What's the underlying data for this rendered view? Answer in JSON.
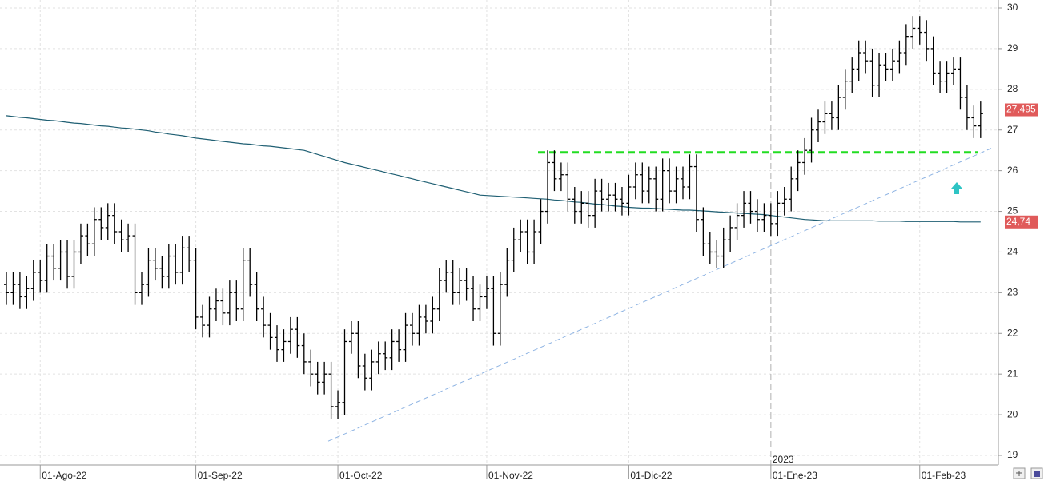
{
  "chart_data": {
    "type": "ohlc",
    "categories": [
      null,
      null,
      null,
      null,
      null,
      "01-Ago-22",
      null,
      null,
      null,
      null,
      null,
      null,
      null,
      null,
      null,
      null,
      null,
      null,
      null,
      null,
      null,
      null,
      null,
      null,
      null,
      null,
      null,
      null,
      "01-Sep-22",
      null,
      null,
      null,
      null,
      null,
      null,
      null,
      null,
      null,
      null,
      null,
      null,
      null,
      null,
      null,
      null,
      null,
      null,
      null,
      null,
      "01-Oct-22",
      null,
      null,
      null,
      null,
      null,
      null,
      null,
      null,
      null,
      null,
      null,
      null,
      null,
      null,
      null,
      null,
      null,
      null,
      null,
      null,
      null,
      "01-Nov-22",
      null,
      null,
      null,
      null,
      null,
      null,
      null,
      null,
      null,
      null,
      null,
      null,
      null,
      null,
      null,
      null,
      null,
      null,
      null,
      null,
      "01-Dic-22",
      null,
      null,
      null,
      null,
      null,
      null,
      null,
      null,
      null,
      null,
      null,
      null,
      null,
      null,
      null,
      null,
      null,
      null,
      null,
      null,
      "01-Ene-23",
      null,
      null,
      null,
      null,
      null,
      null,
      null,
      null,
      null,
      null,
      null,
      null,
      null,
      null,
      null,
      null,
      null,
      null,
      null,
      null,
      null,
      "01-Feb-23",
      null,
      null,
      null,
      null,
      null,
      null,
      null,
      null,
      null
    ],
    "ohlc": {
      "color": "#000000",
      "open": [
        23.2,
        23.0,
        23.2,
        22.9,
        23.1,
        23.5,
        23.3,
        23.9,
        23.6,
        24.0,
        23.4,
        24.0,
        24.4,
        24.2,
        24.8,
        24.6,
        24.9,
        24.5,
        24.3,
        24.4,
        23.0,
        23.2,
        23.8,
        23.6,
        23.4,
        23.9,
        23.5,
        24.1,
        23.8,
        22.4,
        22.2,
        22.6,
        22.8,
        22.5,
        23.0,
        22.6,
        23.8,
        23.2,
        22.6,
        22.2,
        21.9,
        21.6,
        21.8,
        22.1,
        21.7,
        21.3,
        21.0,
        20.8,
        21.0,
        20.2,
        20.3,
        21.8,
        22.0,
        21.2,
        20.9,
        21.3,
        21.5,
        21.4,
        21.8,
        21.6,
        22.2,
        22.0,
        22.4,
        22.3,
        22.6,
        23.3,
        23.5,
        23.0,
        23.3,
        23.1,
        22.6,
        22.9,
        23.1,
        22.0,
        23.2,
        23.8,
        24.3,
        24.5,
        24.0,
        24.5,
        25.0,
        26.2,
        25.8,
        25.9,
        25.3,
        25.0,
        25.2,
        24.9,
        25.5,
        25.3,
        25.4,
        25.3,
        25.2,
        25.6,
        25.9,
        25.5,
        25.8,
        25.3,
        26.0,
        25.5,
        25.8,
        25.6,
        26.1,
        24.8,
        24.2,
        24.0,
        23.9,
        24.3,
        24.6,
        24.9,
        25.2,
        25.0,
        24.8,
        24.9,
        24.7,
        25.2,
        25.3,
        25.8,
        26.2,
        26.5,
        27.0,
        27.2,
        27.4,
        27.3,
        27.8,
        28.2,
        28.5,
        28.9,
        28.7,
        28.1,
        28.6,
        28.5,
        28.7,
        28.9,
        29.3,
        29.5,
        29.4,
        29.0,
        28.4,
        28.2,
        28.4,
        28.5,
        27.8,
        27.3,
        27.1
      ],
      "high": [
        23.5,
        23.5,
        23.5,
        23.4,
        23.8,
        23.8,
        24.2,
        24.2,
        24.3,
        24.3,
        24.3,
        24.7,
        24.7,
        25.1,
        25.1,
        25.2,
        25.2,
        24.8,
        24.7,
        24.7,
        23.5,
        24.1,
        24.1,
        23.9,
        24.2,
        24.2,
        24.4,
        24.4,
        24.1,
        22.7,
        22.9,
        23.1,
        23.1,
        23.3,
        23.3,
        24.1,
        24.1,
        23.5,
        22.9,
        22.5,
        22.2,
        22.1,
        22.4,
        22.4,
        22.0,
        21.6,
        21.3,
        21.3,
        21.3,
        20.6,
        22.1,
        22.3,
        22.3,
        21.5,
        21.6,
        21.8,
        21.8,
        22.1,
        22.1,
        22.5,
        22.5,
        22.7,
        22.7,
        22.9,
        23.6,
        23.8,
        23.8,
        23.6,
        23.6,
        23.4,
        23.2,
        23.4,
        23.4,
        23.5,
        24.1,
        24.6,
        24.8,
        24.8,
        24.8,
        25.3,
        26.5,
        26.5,
        26.2,
        26.2,
        25.6,
        25.5,
        25.5,
        25.8,
        25.8,
        25.7,
        25.7,
        25.6,
        25.9,
        26.2,
        26.2,
        26.1,
        26.1,
        26.3,
        26.3,
        26.1,
        26.1,
        26.4,
        26.4,
        25.1,
        24.5,
        24.3,
        24.6,
        24.9,
        25.2,
        25.5,
        25.5,
        25.3,
        25.2,
        25.2,
        25.5,
        25.6,
        26.1,
        26.5,
        26.8,
        27.3,
        27.5,
        27.7,
        27.7,
        28.1,
        28.5,
        28.8,
        29.2,
        29.2,
        29.0,
        28.9,
        28.9,
        29.0,
        29.2,
        29.6,
        29.8,
        29.8,
        29.7,
        29.3,
        28.7,
        28.7,
        28.8,
        28.8,
        28.1,
        27.6,
        27.7
      ],
      "low": [
        22.7,
        22.7,
        22.6,
        22.6,
        22.8,
        23.0,
        23.0,
        23.3,
        23.3,
        23.1,
        23.1,
        23.7,
        23.9,
        23.9,
        24.3,
        24.3,
        24.2,
        24.0,
        24.0,
        22.7,
        22.7,
        22.9,
        23.3,
        23.1,
        23.1,
        23.2,
        23.2,
        23.5,
        22.1,
        21.9,
        21.9,
        22.3,
        22.2,
        22.2,
        22.3,
        22.3,
        22.9,
        22.3,
        21.9,
        21.6,
        21.3,
        21.3,
        21.5,
        21.4,
        21.0,
        20.7,
        20.5,
        20.5,
        19.9,
        19.9,
        20.0,
        21.5,
        20.9,
        20.6,
        20.6,
        21.0,
        21.1,
        21.1,
        21.3,
        21.3,
        21.7,
        21.7,
        22.0,
        22.0,
        22.3,
        23.0,
        22.7,
        22.7,
        22.8,
        22.3,
        22.3,
        22.6,
        21.7,
        21.7,
        22.9,
        23.5,
        24.0,
        23.7,
        23.7,
        24.2,
        24.7,
        25.5,
        25.5,
        25.0,
        24.7,
        24.7,
        24.6,
        24.6,
        25.0,
        25.0,
        25.0,
        24.9,
        24.9,
        25.3,
        25.2,
        25.2,
        25.0,
        25.0,
        25.2,
        25.2,
        25.3,
        25.3,
        24.5,
        23.9,
        23.7,
        23.6,
        23.6,
        24.0,
        24.3,
        24.6,
        24.7,
        24.5,
        24.5,
        24.4,
        24.4,
        24.9,
        25.0,
        25.5,
        25.9,
        26.2,
        26.7,
        26.9,
        27.0,
        27.0,
        27.5,
        27.9,
        28.2,
        28.4,
        27.8,
        27.8,
        28.2,
        28.2,
        28.4,
        28.6,
        29.0,
        29.1,
        28.7,
        28.1,
        27.9,
        27.9,
        28.1,
        27.5,
        27.0,
        26.8,
        26.8
      ],
      "close": [
        23.0,
        23.2,
        22.9,
        23.1,
        23.5,
        23.3,
        23.9,
        23.6,
        24.0,
        23.4,
        24.0,
        24.4,
        24.2,
        24.8,
        24.6,
        24.9,
        24.5,
        24.3,
        24.4,
        23.0,
        23.2,
        23.8,
        23.6,
        23.4,
        23.9,
        23.5,
        24.1,
        23.8,
        22.4,
        22.2,
        22.6,
        22.8,
        22.5,
        23.0,
        22.6,
        23.8,
        23.2,
        22.6,
        22.2,
        21.9,
        21.6,
        21.8,
        22.1,
        21.7,
        21.3,
        21.0,
        20.8,
        21.0,
        20.2,
        20.3,
        21.8,
        22.0,
        21.2,
        20.9,
        21.3,
        21.5,
        21.4,
        21.8,
        21.6,
        22.2,
        22.0,
        22.4,
        22.3,
        22.6,
        23.3,
        23.5,
        23.0,
        23.3,
        23.1,
        22.6,
        22.9,
        23.1,
        22.0,
        23.2,
        23.8,
        24.3,
        24.5,
        24.0,
        24.5,
        25.0,
        26.2,
        25.8,
        25.9,
        25.3,
        25.0,
        25.2,
        24.9,
        25.5,
        25.3,
        25.4,
        25.3,
        25.2,
        25.6,
        25.9,
        25.5,
        25.8,
        25.3,
        26.0,
        25.5,
        25.8,
        25.6,
        26.1,
        24.8,
        24.2,
        24.0,
        23.9,
        24.3,
        24.6,
        24.9,
        25.2,
        25.0,
        24.8,
        24.9,
        24.7,
        25.2,
        25.3,
        25.8,
        26.2,
        26.5,
        27.0,
        27.2,
        27.4,
        27.3,
        27.8,
        28.2,
        28.5,
        28.9,
        28.7,
        28.1,
        28.6,
        28.5,
        28.7,
        28.9,
        29.3,
        29.5,
        29.4,
        29.0,
        28.4,
        28.2,
        28.4,
        28.5,
        27.8,
        27.3,
        27.1,
        27.4
      ]
    },
    "moving_average": {
      "color": "#1f5f73",
      "values": [
        27.35,
        27.33,
        27.31,
        27.3,
        27.28,
        27.26,
        27.24,
        27.23,
        27.21,
        27.19,
        27.17,
        27.16,
        27.14,
        27.12,
        27.1,
        27.09,
        27.07,
        27.05,
        27.04,
        27.02,
        27.0,
        26.98,
        26.95,
        26.93,
        26.9,
        26.88,
        26.86,
        26.83,
        26.8,
        26.78,
        26.76,
        26.74,
        26.72,
        26.7,
        26.68,
        26.66,
        26.65,
        26.63,
        26.61,
        26.6,
        26.58,
        26.56,
        26.54,
        26.52,
        26.5,
        26.45,
        26.4,
        26.35,
        26.3,
        26.25,
        26.2,
        26.16,
        26.12,
        26.08,
        26.04,
        26.0,
        25.96,
        25.92,
        25.88,
        25.84,
        25.8,
        25.76,
        25.72,
        25.68,
        25.64,
        25.6,
        25.56,
        25.52,
        25.48,
        25.44,
        25.4,
        25.39,
        25.38,
        25.37,
        25.36,
        25.35,
        25.34,
        25.33,
        25.32,
        25.31,
        25.3,
        25.28,
        25.27,
        25.25,
        25.23,
        25.22,
        25.2,
        25.18,
        25.17,
        25.15,
        25.13,
        25.12,
        25.1,
        25.09,
        25.08,
        25.08,
        25.07,
        25.06,
        25.05,
        25.04,
        25.03,
        25.03,
        25.02,
        25.01,
        25.0,
        24.99,
        24.98,
        24.97,
        24.96,
        24.95,
        24.94,
        24.93,
        24.92,
        24.9,
        24.88,
        24.86,
        24.84,
        24.82,
        24.8,
        24.79,
        24.78,
        24.77,
        24.77,
        24.77,
        24.77,
        24.77,
        24.77,
        24.77,
        24.77,
        24.76,
        24.76,
        24.76,
        24.76,
        24.75,
        24.75,
        24.75,
        24.75,
        24.75,
        24.75,
        24.75,
        24.75,
        24.74,
        24.74,
        24.74,
        24.74
      ]
    },
    "resistance": {
      "value": 26.45,
      "color": "#22dd22"
    },
    "trend_line": {
      "values": [
        19.35,
        26.55
      ],
      "color": "#8fb4e3"
    },
    "last_price": {
      "value": 27.495,
      "label": "27,495"
    },
    "ma_last": {
      "value": 24.74,
      "label": "24,74"
    },
    "year_label": "2023",
    "ylim": [
      18.8,
      30.3
    ],
    "yticks": [
      19,
      20,
      21,
      22,
      23,
      24,
      25,
      26,
      27,
      28,
      29,
      30
    ],
    "grid": true
  }
}
